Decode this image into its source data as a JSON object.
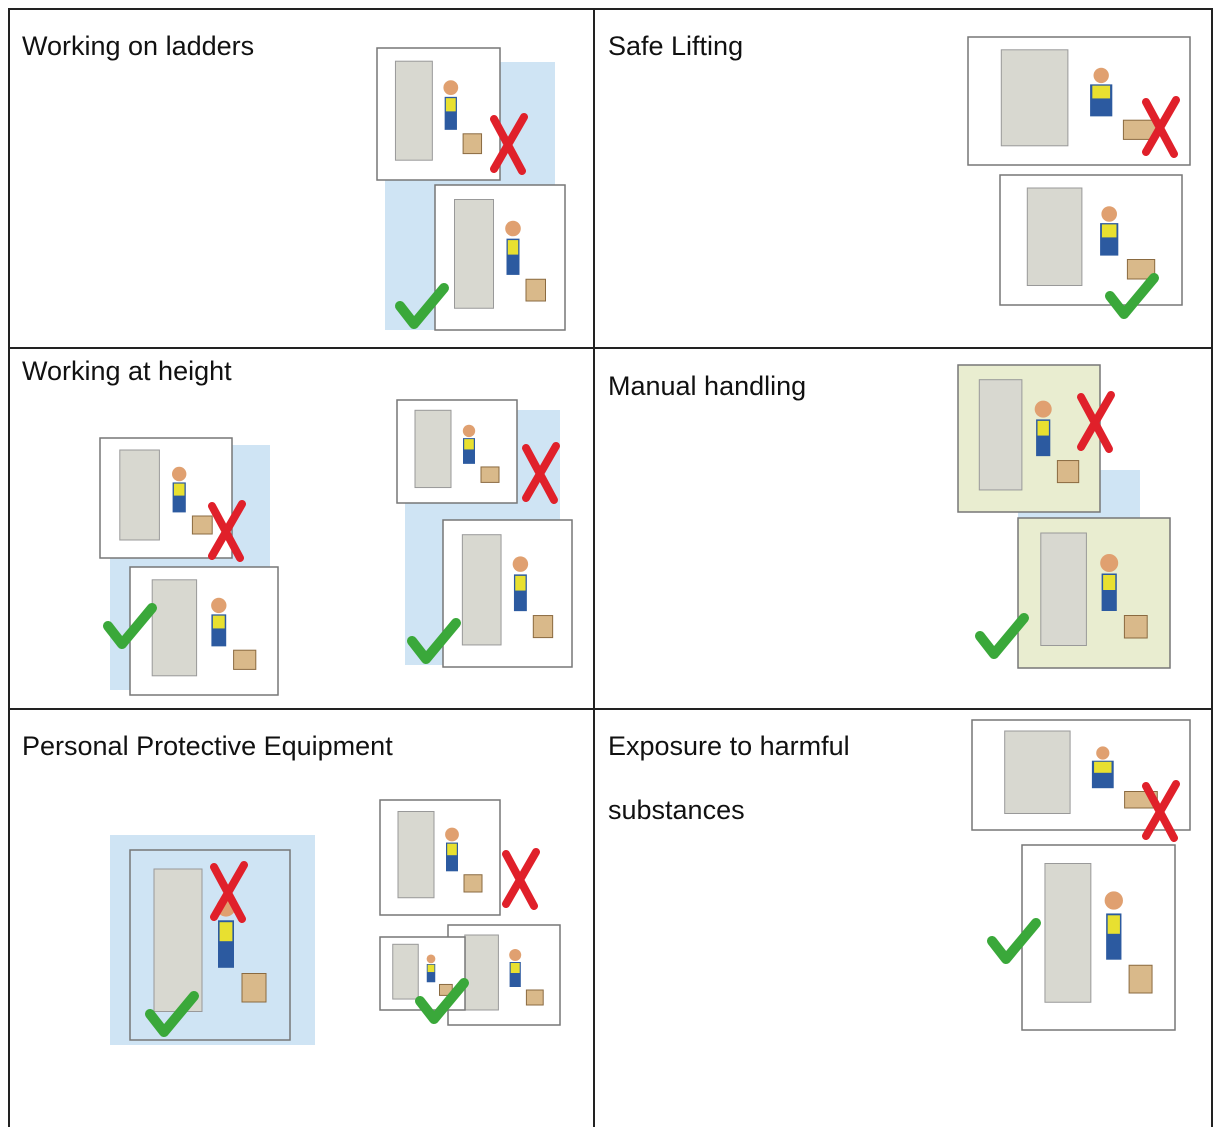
{
  "table": {
    "rows": [
      [
        "Working on ladders",
        "Safe Lifting"
      ],
      [
        "Working at height",
        "Manual handling"
      ],
      [
        "Personal Protective Equipment",
        "Exposure to harmful substances"
      ]
    ]
  }
}
